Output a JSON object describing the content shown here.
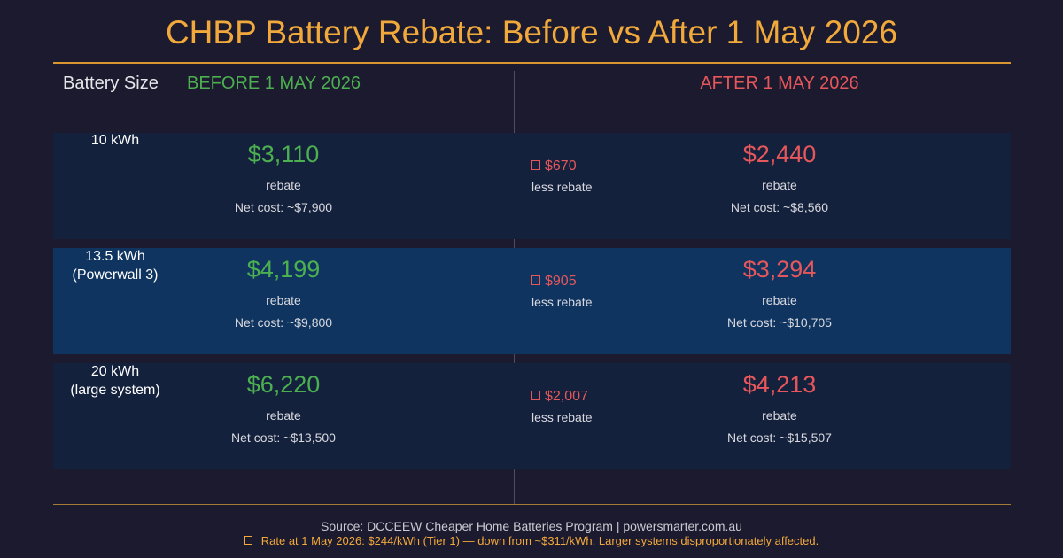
{
  "title": "CHBP Battery Rebate: Before vs After 1 May 2026",
  "colors": {
    "background": "#1c1a2e",
    "title": "#f2a93b",
    "before": "#4caf50",
    "after": "#e5575b",
    "row_default": "#14213d",
    "row_highlight": "#0f3460"
  },
  "headers": {
    "size": "Battery Size",
    "before": "BEFORE 1 MAY 2026",
    "after": "AFTER 1 MAY 2026"
  },
  "chart_data": {
    "type": "table",
    "title": "CHBP Battery Rebate: Before vs After 1 May 2026",
    "columns": [
      "Battery Size",
      "BEFORE 1 MAY 2026",
      "AFTER 1 MAY 2026"
    ],
    "rows": [
      {
        "size_line1": "10 kWh",
        "size_line2": "",
        "highlight": false,
        "before_rebate": "$3,110",
        "before_label": "rebate",
        "before_net": "Net cost: ~$7,900",
        "loss": "$670",
        "loss_label": "less rebate",
        "after_rebate": "$2,440",
        "after_label": "rebate",
        "after_net": "Net cost: ~$8,560"
      },
      {
        "size_line1": "13.5 kWh",
        "size_line2": "(Powerwall 3)",
        "highlight": true,
        "before_rebate": "$4,199",
        "before_label": "rebate",
        "before_net": "Net cost: ~$9,800",
        "loss": "$905",
        "loss_label": "less rebate",
        "after_rebate": "$3,294",
        "after_label": "rebate",
        "after_net": "Net cost: ~$10,705"
      },
      {
        "size_line1": "20 kWh",
        "size_line2": "(large system)",
        "highlight": false,
        "before_rebate": "$6,220",
        "before_label": "rebate",
        "before_net": "Net cost: ~$13,500",
        "loss": "$2,007",
        "loss_label": "less rebate",
        "after_rebate": "$4,213",
        "after_label": "rebate",
        "after_net": "Net cost: ~$15,507"
      }
    ]
  },
  "footer": {
    "source": "Source: DCCEEW Cheaper Home Batteries Program  |  powersmarter.com.au",
    "note": "Rate at 1 May 2026: $244/kWh (Tier 1) — down from ~$311/kWh. Larger systems disproportionately affected."
  }
}
